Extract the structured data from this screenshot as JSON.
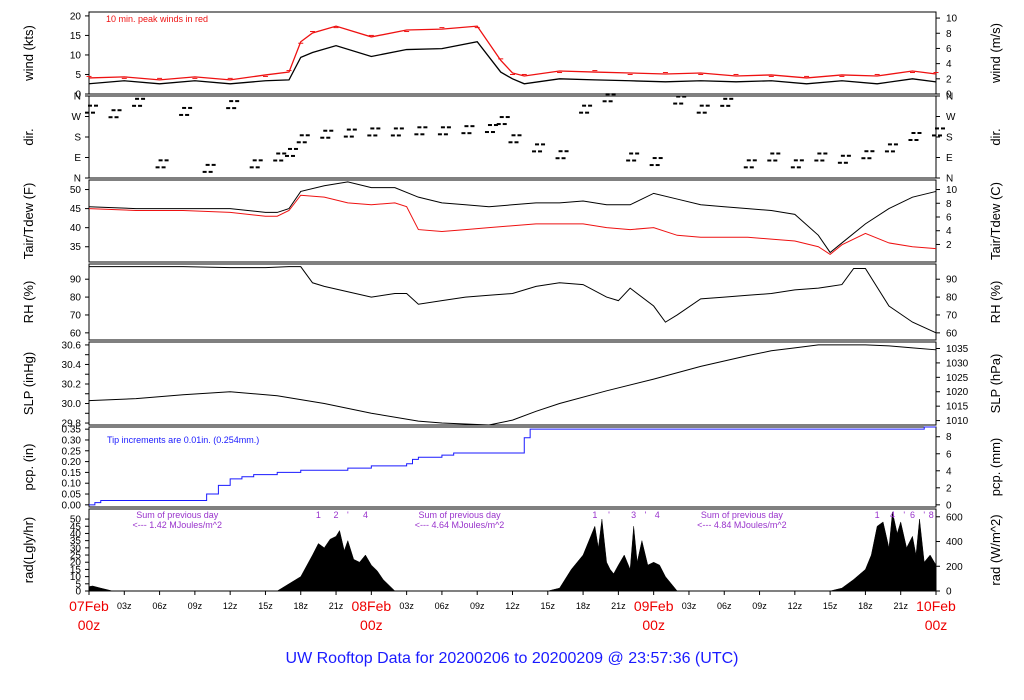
{
  "title": "UW Rooftop Data for 20200206  to  20200209 @ 23:57:36  (UTC)",
  "colors": {
    "black": "#000000",
    "red": "#ee1111",
    "blue": "#1a1aff",
    "purple": "#9933cc",
    "daylabel": "#ee0000"
  },
  "chart_data": [
    {
      "id": "wind",
      "type": "line",
      "ylabel": "wind (kts)",
      "ylabel_right": "wind (m/s)",
      "ylim": [
        0,
        21
      ],
      "yticks": [
        0,
        5,
        10,
        15,
        20
      ],
      "right_ylim": [
        0,
        10.8
      ],
      "right_yticks": [
        0,
        2,
        4,
        6,
        8,
        10
      ],
      "annotation": "10 min. peak winds in red",
      "series": [
        {
          "name": "wind",
          "color": "#000000",
          "x": [
            0,
            3,
            6,
            9,
            12,
            15,
            17,
            18,
            19,
            21,
            24,
            27,
            30,
            33,
            35,
            36,
            37,
            40,
            43,
            46,
            49,
            52,
            55,
            58,
            61,
            64,
            67,
            70,
            72
          ],
          "y": [
            3,
            3,
            3,
            3,
            3,
            3,
            4,
            9,
            11,
            12,
            10,
            11,
            12,
            13,
            6,
            3.5,
            3,
            3.5,
            4,
            3,
            3.5,
            3,
            3.5,
            3,
            3,
            3,
            3,
            3.5,
            3.5
          ]
        },
        {
          "name": "10 min. peak winds",
          "color": "#ee1111",
          "x": [
            0,
            3,
            6,
            9,
            12,
            15,
            17,
            18,
            19,
            21,
            24,
            27,
            30,
            33,
            35,
            36,
            37,
            40,
            43,
            46,
            49,
            52,
            55,
            58,
            61,
            64,
            67,
            70,
            72
          ],
          "y": [
            4.5,
            4,
            4,
            4,
            4,
            4.5,
            6,
            13,
            16,
            17,
            15,
            16,
            17,
            17,
            9,
            5,
            5,
            5.5,
            6,
            5,
            5.5,
            5,
            5,
            4.5,
            4.5,
            4.5,
            5,
            5.5,
            5.5
          ]
        }
      ]
    },
    {
      "id": "dir",
      "type": "scatter",
      "ylabel": "dir.",
      "ylabel_right": "dir.",
      "ylim": [
        0,
        360
      ],
      "yticks": [
        0,
        90,
        180,
        270,
        360
      ],
      "ytick_labels": [
        "N",
        "E",
        "S",
        "W",
        "N"
      ],
      "series": [
        {
          "name": "direction",
          "x": [
            0,
            2,
            4,
            6,
            8,
            10,
            12,
            14,
            16,
            17,
            18,
            20,
            22,
            24,
            26,
            28,
            30,
            32,
            34,
            35,
            36,
            38,
            40,
            42,
            44,
            46,
            48,
            50,
            52,
            54,
            56,
            58,
            60,
            62,
            64,
            66,
            68,
            70,
            72
          ],
          "y": [
            300,
            280,
            330,
            60,
            290,
            40,
            320,
            60,
            90,
            110,
            170,
            190,
            195,
            200,
            200,
            205,
            205,
            210,
            215,
            250,
            170,
            130,
            100,
            300,
            350,
            90,
            70,
            340,
            300,
            330,
            60,
            90,
            60,
            90,
            80,
            100,
            130,
            180,
            200
          ]
        }
      ]
    },
    {
      "id": "temp",
      "type": "line",
      "ylabel": "Tair/Tdew (F)",
      "ylabel_right": "Tair/Tdew (C)",
      "ylim": [
        31,
        52.5
      ],
      "yticks": [
        35,
        40,
        45,
        50
      ],
      "right_yticks": [
        2,
        4,
        6,
        8,
        10
      ],
      "series": [
        {
          "name": "Tair",
          "color": "#000000",
          "x": [
            0,
            4,
            8,
            12,
            15,
            16,
            17,
            18,
            20,
            22,
            24,
            26,
            28,
            30,
            32,
            34,
            36,
            38,
            40,
            42,
            44,
            46,
            48,
            50,
            52,
            54,
            56,
            58,
            60,
            62,
            63,
            64,
            66,
            68,
            70,
            72
          ],
          "y": [
            45.5,
            45,
            45,
            45,
            44,
            44,
            45,
            49.5,
            51,
            52,
            50.5,
            50.5,
            48,
            46.5,
            46,
            45.5,
            46,
            46.5,
            46.5,
            47,
            46,
            46,
            49,
            47.5,
            46,
            45.5,
            45,
            44.5,
            43.5,
            38,
            33.5,
            36,
            41,
            45,
            48,
            49.5
          ]
        },
        {
          "name": "Tdew",
          "color": "#ee1111",
          "x": [
            0,
            4,
            8,
            12,
            15,
            16,
            17,
            18,
            20,
            22,
            24,
            26,
            27,
            28,
            30,
            32,
            34,
            36,
            38,
            40,
            42,
            44,
            46,
            48,
            50,
            52,
            54,
            56,
            58,
            60,
            62,
            63,
            64,
            66,
            68,
            70,
            72
          ],
          "y": [
            45,
            44.5,
            44.5,
            44,
            43,
            43,
            44.5,
            48.5,
            48,
            46.5,
            46,
            46.5,
            45.5,
            39.5,
            39,
            39.5,
            40,
            40.5,
            41,
            41,
            41,
            40,
            39.5,
            40,
            38,
            37.5,
            37.5,
            37.5,
            37,
            36.5,
            35,
            33,
            35.5,
            38.5,
            36,
            35,
            34.5
          ]
        }
      ]
    },
    {
      "id": "rh",
      "type": "line",
      "ylabel": "RH (%)",
      "ylabel_right": "RH (%)",
      "ylim": [
        56,
        98.5
      ],
      "yticks": [
        60,
        70,
        80,
        90
      ],
      "right_yticks": [
        60,
        70,
        80,
        90
      ],
      "series": [
        {
          "name": "RH",
          "color": "#000000",
          "x": [
            0,
            4,
            8,
            12,
            15,
            17,
            18,
            19,
            20,
            22,
            24,
            26,
            27,
            28,
            30,
            32,
            34,
            36,
            38,
            40,
            42,
            44,
            45,
            46,
            48,
            49,
            50,
            52,
            54,
            56,
            58,
            60,
            62,
            63,
            64,
            65,
            66,
            68,
            70,
            72
          ],
          "y": [
            97,
            97,
            97,
            96.5,
            96.5,
            97,
            97,
            88,
            86,
            83,
            80,
            82,
            82,
            76,
            78,
            80,
            81,
            82,
            86,
            88,
            87,
            80,
            78,
            85,
            75,
            66,
            70,
            79,
            80,
            81,
            82,
            84,
            85,
            86,
            87,
            96,
            96,
            75,
            66,
            60
          ]
        }
      ]
    },
    {
      "id": "slp",
      "type": "line",
      "ylabel": "SLP (inHg)",
      "ylabel_right": "SLP (hPa)",
      "ylim": [
        29.78,
        30.63
      ],
      "yticks": [
        29.8,
        29.9,
        30.0,
        30.1,
        30.2,
        30.3,
        30.4,
        30.5,
        30.6
      ],
      "ytick_labels": [
        "29.8",
        "",
        "30.0",
        "",
        "30.2",
        "",
        "30.4",
        "",
        "30.6"
      ],
      "right_yticks": [
        1010,
        1015,
        1020,
        1025,
        1030,
        1035
      ],
      "series": [
        {
          "name": "SLP",
          "color": "#000000",
          "x": [
            0,
            4,
            8,
            12,
            16,
            20,
            24,
            28,
            30,
            32,
            34,
            36,
            38,
            40,
            44,
            48,
            52,
            56,
            58,
            60,
            62,
            64,
            66,
            68,
            70,
            72
          ],
          "y": [
            30.03,
            30.05,
            30.09,
            30.12,
            30.08,
            30.0,
            29.9,
            29.82,
            29.8,
            29.79,
            29.78,
            29.83,
            29.92,
            30.0,
            30.13,
            30.25,
            30.38,
            30.49,
            30.54,
            30.57,
            30.6,
            30.6,
            30.6,
            30.59,
            30.57,
            30.55
          ]
        }
      ]
    },
    {
      "id": "pcp",
      "type": "line",
      "ylabel": "pcp. (in)",
      "ylabel_right": "pcp. (mm)",
      "ylim": [
        -0.01,
        0.36
      ],
      "yticks": [
        0,
        0.05,
        0.1,
        0.15,
        0.2,
        0.25,
        0.3,
        0.35
      ],
      "ytick_labels": [
        "0.00",
        "0.05",
        "0.10",
        "0.15",
        "0.20",
        "0.25",
        "0.30",
        "0.35"
      ],
      "right_yticks": [
        0,
        2,
        4,
        6,
        8
      ],
      "annotation": "Tip increments are 0.01in. (0.254mm.)",
      "series": [
        {
          "name": "pcp",
          "color": "#1a1aff",
          "x": [
            0,
            0.5,
            1,
            8,
            10,
            11,
            12,
            13,
            14,
            15,
            16,
            18,
            20,
            22,
            24,
            26,
            27,
            27.5,
            28,
            29,
            30,
            31,
            32,
            36,
            37,
            37.5,
            38,
            40,
            45,
            50,
            55,
            60,
            65,
            70,
            71,
            72
          ],
          "y": [
            0,
            0.01,
            0.02,
            0.02,
            0.05,
            0.09,
            0.12,
            0.13,
            0.14,
            0.14,
            0.15,
            0.16,
            0.16,
            0.17,
            0.18,
            0.18,
            0.19,
            0.21,
            0.22,
            0.22,
            0.23,
            0.24,
            0.24,
            0.24,
            0.31,
            0.35,
            0.35,
            0.35,
            0.35,
            0.35,
            0.35,
            0.35,
            0.35,
            0.35,
            0.36,
            0.36
          ]
        }
      ]
    },
    {
      "id": "rad",
      "type": "area",
      "ylabel": "rad(Lgly/hr)",
      "ylabel_right": "rad (W/m^2)",
      "ylim": [
        0,
        57
      ],
      "yticks": [
        0,
        5,
        10,
        15,
        20,
        25,
        30,
        35,
        40,
        45,
        50
      ],
      "right_yticks": [
        0,
        200,
        400,
        600
      ],
      "annotations": [
        {
          "text": "Sum of previous day",
          "x": 7.5,
          "row": 1
        },
        {
          "text": "<--- 1.42 MJoules/m^2",
          "x": 7.5,
          "row": 2
        },
        {
          "text": "Sum of previous day",
          "x": 31.5,
          "row": 1
        },
        {
          "text": "<--- 4.64 MJoules/m^2",
          "x": 31.5,
          "row": 2
        },
        {
          "text": "Sum of previous day",
          "x": 55.5,
          "row": 1
        },
        {
          "text": "<--- 4.84 MJoules/m^2",
          "x": 55.5,
          "row": 2
        }
      ],
      "top_marks": [
        {
          "text": "1",
          "x": 19.5
        },
        {
          "text": "2",
          "x": 21
        },
        {
          "text": "'",
          "x": 22
        },
        {
          "text": "4",
          "x": 23.5
        },
        {
          "text": "1",
          "x": 43
        },
        {
          "text": "'",
          "x": 44.2
        },
        {
          "text": "3",
          "x": 46.3
        },
        {
          "text": "'",
          "x": 47.3
        },
        {
          "text": "4",
          "x": 48.3
        },
        {
          "text": "1",
          "x": 67
        },
        {
          "text": "4",
          "x": 68.3
        },
        {
          "text": "'",
          "x": 69.3
        },
        {
          "text": "6",
          "x": 70
        },
        {
          "text": "'",
          "x": 71
        },
        {
          "text": "8",
          "x": 71.6
        }
      ],
      "series": [
        {
          "name": "rad",
          "color": "#000000",
          "x": [
            0,
            0.3,
            1,
            1.5,
            2,
            15,
            16,
            17,
            18,
            19,
            19.5,
            20,
            20.5,
            21,
            21.3,
            21.7,
            22,
            22.5,
            23,
            23.5,
            24,
            24.5,
            25,
            26,
            39,
            40,
            41,
            42,
            43,
            43.3,
            43.6,
            44,
            44.3,
            44.6,
            45,
            45.5,
            46,
            46.3,
            46.6,
            47,
            47.5,
            48,
            48.5,
            49,
            50,
            63,
            64,
            65,
            66,
            66.5,
            67,
            67.5,
            68,
            68.3,
            68.7,
            69,
            69.5,
            70,
            70.3,
            70.6,
            71,
            71.5,
            72
          ],
          "y": [
            3,
            3.5,
            2,
            1,
            0,
            0,
            0,
            5,
            10,
            25,
            33,
            30,
            36,
            38,
            42,
            28,
            35,
            22,
            20,
            25,
            18,
            14,
            8,
            0,
            0,
            2,
            15,
            25,
            45,
            30,
            50,
            20,
            15,
            12,
            18,
            25,
            15,
            45,
            20,
            35,
            18,
            20,
            18,
            10,
            0,
            0,
            2,
            8,
            15,
            25,
            45,
            48,
            30,
            55,
            40,
            48,
            30,
            38,
            25,
            50,
            20,
            25,
            18
          ]
        }
      ]
    }
  ],
  "x_axis": {
    "hours_labels": [
      "03z",
      "06z",
      "09z",
      "12z",
      "15z",
      "18z",
      "21z",
      "03z",
      "06z",
      "09z",
      "12z",
      "15z",
      "18z",
      "21z",
      "03z",
      "06z",
      "09z",
      "12z",
      "15z",
      "18z",
      "21z"
    ],
    "hour_positions": [
      3,
      6,
      9,
      12,
      15,
      18,
      21,
      27,
      30,
      33,
      36,
      39,
      42,
      45,
      51,
      54,
      57,
      60,
      63,
      66,
      69
    ],
    "day_labels": [
      {
        "top": "07Feb",
        "bottom": "00z",
        "x": 0
      },
      {
        "top": "08Feb",
        "bottom": "00z",
        "x": 24
      },
      {
        "top": "09Feb",
        "bottom": "00z",
        "x": 48
      },
      {
        "top": "10Feb",
        "bottom": "00z",
        "x": 72
      }
    ]
  }
}
